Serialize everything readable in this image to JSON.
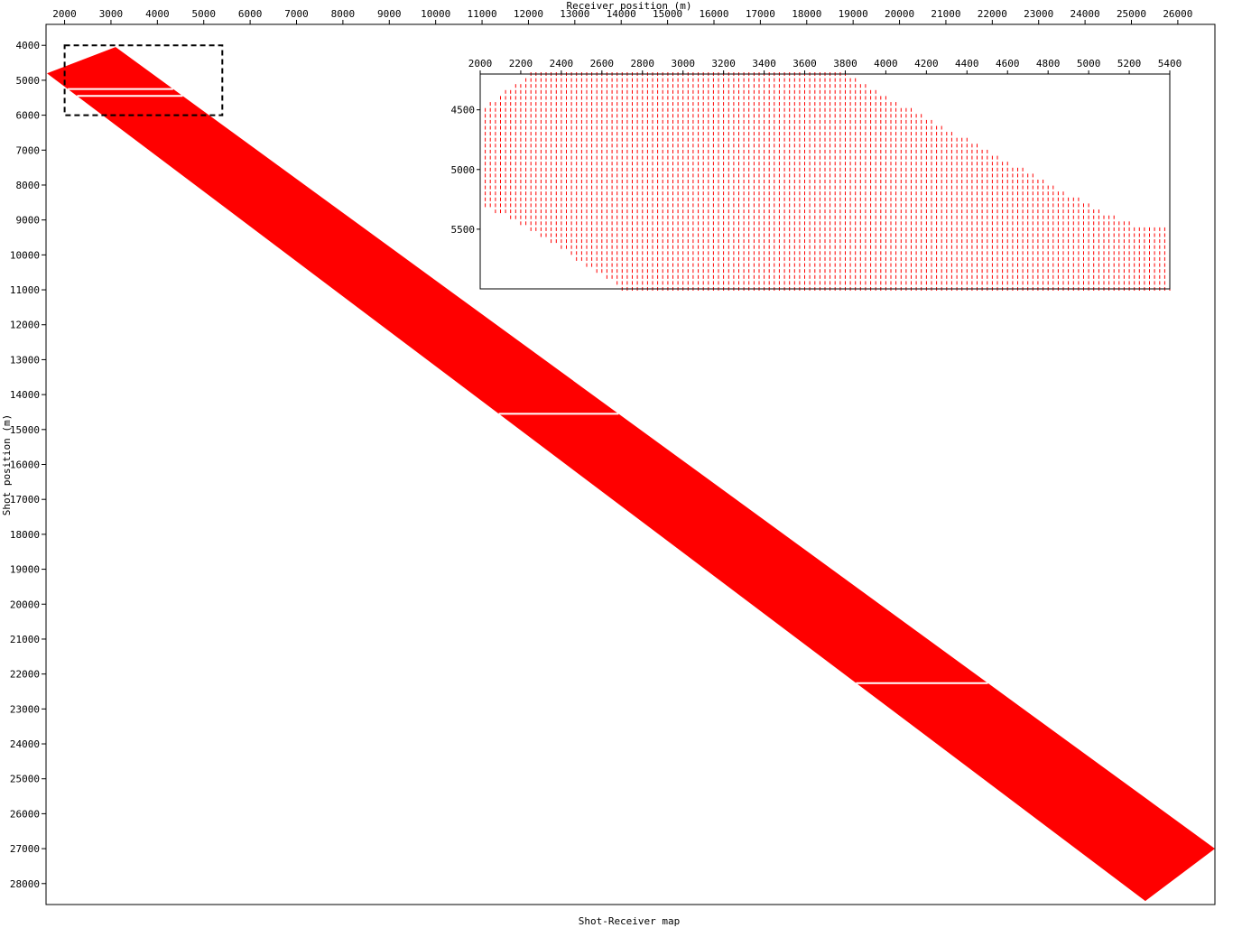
{
  "chart_data": [
    {
      "type": "area",
      "title": "Shot-Receiver map",
      "xlabel": "Receiver position (m)",
      "ylabel": "Shot position (m)",
      "xlim": [
        1600,
        26800
      ],
      "ylim": [
        3400,
        28600
      ],
      "x_axis_position": "top",
      "y_inverted": true,
      "x_ticks": [
        2000,
        3000,
        4000,
        5000,
        6000,
        7000,
        8000,
        9000,
        10000,
        11000,
        12000,
        13000,
        14000,
        15000,
        16000,
        17000,
        18000,
        19000,
        20000,
        21000,
        22000,
        23000,
        24000,
        25000,
        26000
      ],
      "y_ticks": [
        4000,
        5000,
        6000,
        7000,
        8000,
        9000,
        10000,
        11000,
        12000,
        13000,
        14000,
        15000,
        16000,
        17000,
        18000,
        19000,
        20000,
        21000,
        22000,
        23000,
        24000,
        25000,
        26000,
        27000,
        28000
      ],
      "fill_color": "#ff0000",
      "coverage_band": {
        "shots": [
          4050,
          28500
        ],
        "receiver_min": [
          [
            4050,
            3100
          ],
          [
            4800,
            1620
          ],
          [
            28500,
            25300
          ]
        ],
        "receiver_max": [
          [
            4050,
            3100
          ],
          [
            27000,
            26800
          ],
          [
            28500,
            25300
          ]
        ]
      },
      "gaps_at_shot": [
        5250,
        5450,
        14550,
        22260
      ],
      "zoom_region": {
        "x": [
          2000,
          5400
        ],
        "y": [
          4000,
          6000
        ]
      },
      "grid": false,
      "legend": "none"
    },
    {
      "type": "scatter",
      "title": "",
      "x_ticks": [
        2000,
        2200,
        2400,
        2600,
        2800,
        3000,
        3200,
        3400,
        3600,
        3800,
        4000,
        4200,
        4400,
        4600,
        4800,
        5000,
        5200,
        5400
      ],
      "y_ticks": [
        4500,
        5000,
        5500
      ],
      "xlim": [
        2000,
        5400
      ],
      "ylim": [
        4200,
        6000
      ],
      "y_inverted": true,
      "marker_color": "#ff0000",
      "receiver_spacing": 25,
      "shot_spacing": 50,
      "bands": [
        {
          "shots": [
            4200,
            5250
          ],
          "receiver_min": [
            [
              4200,
              2250
            ],
            [
              4490,
              2000
            ],
            [
              5250,
              2000
            ]
          ],
          "receiver_max": [
            [
              4200,
              3800
            ],
            [
              5250,
              4950
            ]
          ]
        },
        {
          "shots": [
            5300,
            5450
          ],
          "receiver_min": [
            [
              5300,
              2000
            ],
            [
              5450,
              2200
            ]
          ],
          "receiver_max": [
            [
              5300,
              5000
            ],
            [
              5450,
              5200
            ]
          ]
        },
        {
          "shots": [
            5500,
            6000
          ],
          "receiver_min": [
            [
              5500,
              2250
            ],
            [
              6000,
              2700
            ]
          ],
          "receiver_max": [
            [
              5500,
              5400
            ],
            [
              6000,
              5400
            ]
          ]
        }
      ],
      "grid": false,
      "legend": "none"
    }
  ]
}
